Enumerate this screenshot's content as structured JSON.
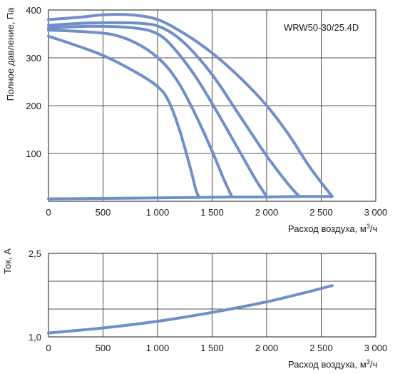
{
  "chart_data": [
    {
      "type": "line",
      "title": "",
      "annotation": "WRW50-30/25.4D",
      "xlabel": "Расход воздуха, м",
      "xlabel_sup": "3",
      "xlabel_tail": "/ч",
      "ylabel": "Полное давление, Па",
      "xlim": [
        0,
        3000
      ],
      "ylim": [
        0,
        400
      ],
      "xticks": [
        0,
        500,
        1000,
        1500,
        2000,
        2500,
        3000
      ],
      "xtick_labels": [
        "0",
        "500",
        "1 000",
        "1 500",
        "2 000",
        "2 500",
        "3 000"
      ],
      "yticks": [
        100,
        200,
        300,
        400
      ],
      "ytick_labels": [
        "100",
        "200",
        "300",
        "400"
      ],
      "grid": true,
      "line_color": "#6f8fc9",
      "series": [
        {
          "x": [
            0,
            200,
            500,
            800,
            1000,
            1100,
            1200,
            1300,
            1350,
            1380
          ],
          "y": [
            345,
            330,
            305,
            270,
            240,
            210,
            150,
            70,
            25,
            8
          ]
        },
        {
          "x": [
            0,
            300,
            600,
            850,
            1050,
            1200,
            1350,
            1500,
            1600,
            1680
          ],
          "y": [
            358,
            355,
            348,
            325,
            290,
            245,
            180,
            105,
            50,
            10
          ]
        },
        {
          "x": [
            0,
            400,
            800,
            1000,
            1150,
            1350,
            1550,
            1750,
            1900,
            2000
          ],
          "y": [
            362,
            366,
            362,
            350,
            320,
            260,
            185,
            105,
            45,
            10
          ]
        },
        {
          "x": [
            0,
            400,
            850,
            1050,
            1250,
            1500,
            1750,
            2000,
            2200,
            2300
          ],
          "y": [
            368,
            373,
            372,
            362,
            330,
            265,
            180,
            95,
            35,
            10
          ]
        },
        {
          "x": [
            0,
            300,
            500,
            750,
            1000,
            1250,
            1500,
            1750,
            2000,
            2200,
            2400,
            2600
          ],
          "y": [
            380,
            385,
            390,
            390,
            380,
            350,
            310,
            260,
            200,
            140,
            70,
            10
          ]
        },
        {
          "x": [
            0,
            500,
            1000,
            1380,
            1680,
            2000,
            2300,
            2600
          ],
          "y": [
            5,
            6,
            7,
            8,
            9,
            9,
            10,
            10
          ]
        }
      ]
    },
    {
      "type": "line",
      "title": "",
      "xlabel": "Расход воздуха, м",
      "xlabel_sup": "3",
      "xlabel_tail": "/ч",
      "ylabel": "Ток, А",
      "xlim": [
        0,
        3000
      ],
      "ylim": [
        1.0,
        2.5
      ],
      "xticks": [
        0,
        500,
        1000,
        1500,
        2000,
        2500,
        3000
      ],
      "xtick_labels": [
        "0",
        "500",
        "1 000",
        "1 500",
        "2 000",
        "2 500",
        "3 000"
      ],
      "yticks": [
        1.0,
        2.5
      ],
      "ytick_labels": [
        "1,0",
        "2,5"
      ],
      "grid": true,
      "line_color": "#6f8fc9",
      "series": [
        {
          "x": [
            0,
            500,
            1000,
            1500,
            2000,
            2300,
            2600
          ],
          "y": [
            1.07,
            1.16,
            1.28,
            1.44,
            1.63,
            1.77,
            1.92
          ]
        }
      ]
    }
  ]
}
